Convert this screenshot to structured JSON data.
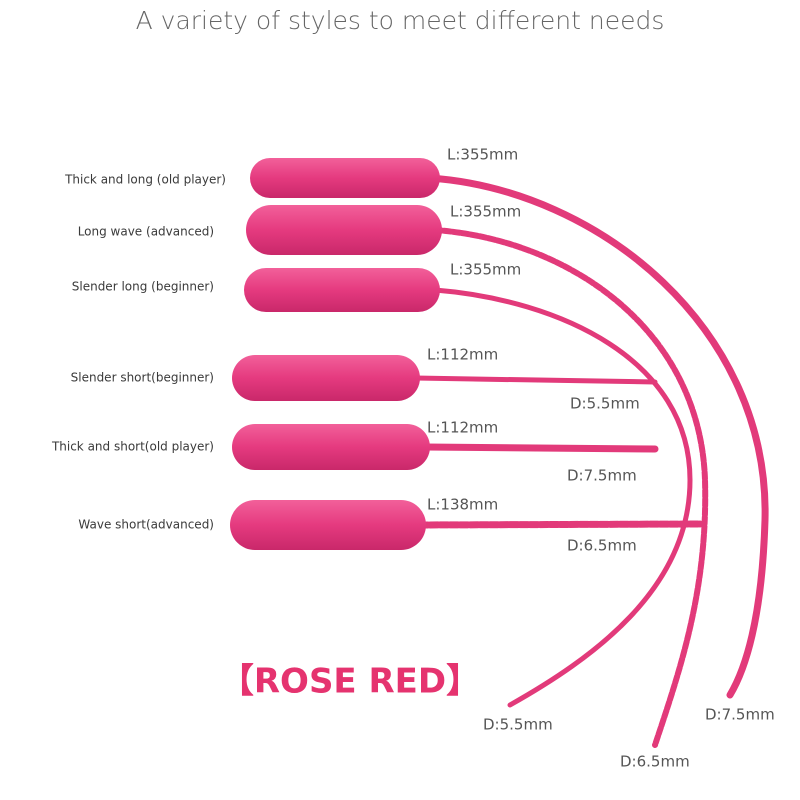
{
  "title": "A variety of styles to meet different needs",
  "items": [
    {
      "label": "Thick and long (old player)",
      "length": "L:355mm",
      "diameter": "D:7.5mm"
    },
    {
      "label": "Long wave (advanced)",
      "length": "L:355mm",
      "diameter": "D:6.5mm"
    },
    {
      "label": "Slender long (beginner)",
      "length": "L:355mm",
      "diameter": "D:5.5mm"
    },
    {
      "label": "Slender short(beginner)",
      "length": "L:112mm",
      "diameter": "D:5.5mm"
    },
    {
      "label": "Thick and short(old player)",
      "length": "L:112mm",
      "diameter": "D:7.5mm"
    },
    {
      "label": "Wave short(advanced)",
      "length": "L:138mm",
      "diameter": "D:6.5mm"
    }
  ],
  "color_label": "【ROSE RED】"
}
